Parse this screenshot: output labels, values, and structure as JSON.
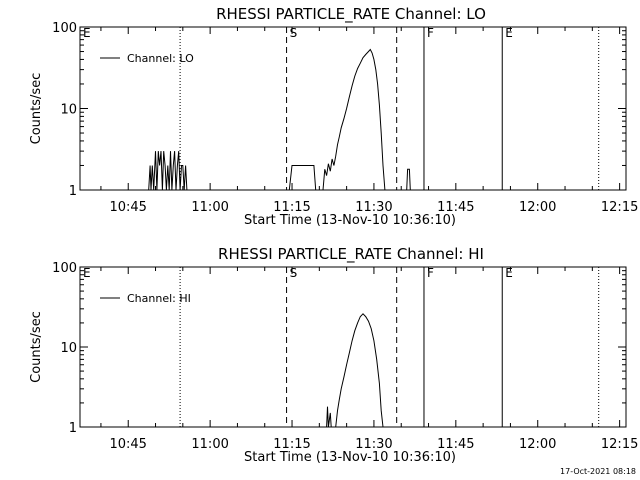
{
  "chart_data": [
    {
      "type": "line",
      "title": "RHESSI PARTICLE_RATE Channel: LO",
      "xlabel": "Start Time (13-Nov-10 10:36:10)",
      "ylabel": "Counts/sec",
      "yscale": "log",
      "ylim": [
        1,
        100
      ],
      "xlim": [
        "10:36:10",
        "12:16:10"
      ],
      "x_ticks": [
        "10:45",
        "11:00",
        "11:15",
        "11:30",
        "11:45",
        "12:00",
        "12:15"
      ],
      "y_ticks": [
        "1",
        "10",
        "100"
      ],
      "legend": {
        "label": "Channel: LO",
        "position": "top-left"
      },
      "markers": [
        {
          "label": "E",
          "time": "10:36:10",
          "style": "none"
        },
        {
          "label": "",
          "time": "10:54:30",
          "style": "dotted"
        },
        {
          "label": "S",
          "time": "11:14:00",
          "style": "dashed"
        },
        {
          "label": "",
          "time": "11:34:10",
          "style": "dashed"
        },
        {
          "label": "F",
          "time": "11:39:10",
          "style": "solid"
        },
        {
          "label": "E",
          "time": "11:53:30",
          "style": "solid"
        },
        {
          "label": "",
          "time": "12:11:10",
          "style": "dotted"
        }
      ],
      "series": [
        {
          "name": "Channel: LO",
          "segments": [
            [
              [
                "10:48:45",
                1
              ],
              [
                "10:49:00",
                2
              ],
              [
                "10:49:10",
                1
              ],
              [
                "10:49:25",
                2
              ],
              [
                "10:49:40",
                1
              ],
              [
                "10:50:00",
                3
              ],
              [
                "10:50:15",
                1
              ],
              [
                "10:50:30",
                3
              ],
              [
                "10:50:45",
                2
              ],
              [
                "10:51:00",
                3
              ],
              [
                "10:51:15",
                1
              ],
              [
                "10:51:30",
                3
              ],
              [
                "10:51:45",
                2
              ],
              [
                "10:52:00",
                1
              ],
              [
                "10:52:15",
                2
              ],
              [
                "10:52:30",
                1
              ],
              [
                "10:52:45",
                3
              ],
              [
                "10:53:00",
                1
              ],
              [
                "10:53:15",
                2
              ],
              [
                "10:53:30",
                3
              ],
              [
                "10:53:45",
                1
              ],
              [
                "10:54:00",
                2
              ],
              [
                "10:54:15",
                3
              ],
              [
                "10:54:30",
                1
              ],
              [
                "10:54:45",
                2
              ],
              [
                "10:55:00",
                2
              ],
              [
                "10:55:15",
                1
              ],
              [
                "10:55:30",
                2
              ],
              [
                "10:55:45",
                1
              ]
            ],
            [
              [
                "11:14:30",
                1
              ],
              [
                "11:15:00",
                2
              ],
              [
                "11:19:00",
                2
              ],
              [
                "11:19:20",
                1
              ]
            ],
            [
              [
                "11:20:40",
                1
              ],
              [
                "11:21:00",
                1.8
              ],
              [
                "11:21:20",
                1.5
              ],
              [
                "11:21:40",
                2.1
              ],
              [
                "11:22:00",
                1.7
              ],
              [
                "11:22:20",
                2.4
              ],
              [
                "11:22:40",
                2.0
              ],
              [
                "11:23:00",
                2.6
              ],
              [
                "11:23:20",
                3.6
              ],
              [
                "11:23:40",
                4.5
              ],
              [
                "11:24:00",
                5.8
              ],
              [
                "11:24:30",
                7.5
              ],
              [
                "11:25:00",
                10
              ],
              [
                "11:25:30",
                14
              ],
              [
                "11:26:00",
                19
              ],
              [
                "11:26:30",
                25
              ],
              [
                "11:27:00",
                31
              ],
              [
                "11:27:30",
                36
              ],
              [
                "11:28:00",
                42
              ],
              [
                "11:28:30",
                46
              ],
              [
                "11:29:00",
                50
              ],
              [
                "11:29:20",
                53
              ],
              [
                "11:29:40",
                48
              ],
              [
                "11:30:00",
                40
              ],
              [
                "11:30:20",
                30
              ],
              [
                "11:30:40",
                20
              ],
              [
                "11:31:00",
                11
              ],
              [
                "11:31:20",
                5
              ],
              [
                "11:31:40",
                2
              ],
              [
                "11:32:00",
                1
              ]
            ],
            [
              [
                "11:36:00",
                1
              ],
              [
                "11:36:10",
                1.8
              ],
              [
                "11:36:30",
                1.8
              ],
              [
                "11:36:40",
                1
              ]
            ]
          ]
        }
      ]
    },
    {
      "type": "line",
      "title": "RHESSI PARTICLE_RATE Channel: HI",
      "xlabel": "Start Time (13-Nov-10 10:36:10)",
      "ylabel": "Counts/sec",
      "yscale": "log",
      "ylim": [
        1,
        100
      ],
      "xlim": [
        "10:36:10",
        "12:16:10"
      ],
      "x_ticks": [
        "10:45",
        "11:00",
        "11:15",
        "11:30",
        "11:45",
        "12:00",
        "12:15"
      ],
      "y_ticks": [
        "1",
        "10",
        "100"
      ],
      "legend": {
        "label": "Channel: HI",
        "position": "top-left"
      },
      "markers": [
        {
          "label": "E",
          "time": "10:36:10",
          "style": "none"
        },
        {
          "label": "",
          "time": "10:54:30",
          "style": "dotted"
        },
        {
          "label": "S",
          "time": "11:14:00",
          "style": "dashed"
        },
        {
          "label": "",
          "time": "11:34:10",
          "style": "dashed"
        },
        {
          "label": "F",
          "time": "11:39:10",
          "style": "solid"
        },
        {
          "label": "E",
          "time": "11:53:30",
          "style": "solid"
        },
        {
          "label": "",
          "time": "12:11:10",
          "style": "dotted"
        }
      ],
      "series": [
        {
          "name": "Channel: HI",
          "segments": [
            [
              [
                "11:21:20",
                1
              ],
              [
                "11:21:30",
                1.8
              ],
              [
                "11:21:40",
                1
              ],
              [
                "11:22:00",
                1.5
              ],
              [
                "11:22:10",
                1
              ],
              [
                "11:23:00",
                1
              ],
              [
                "11:23:20",
                1.6
              ],
              [
                "11:23:40",
                2.2
              ],
              [
                "11:24:00",
                3
              ],
              [
                "11:24:30",
                4.2
              ],
              [
                "11:25:00",
                6
              ],
              [
                "11:25:30",
                8.5
              ],
              [
                "11:26:00",
                12
              ],
              [
                "11:26:30",
                16
              ],
              [
                "11:27:00",
                20
              ],
              [
                "11:27:30",
                24
              ],
              [
                "11:28:00",
                26
              ],
              [
                "11:28:30",
                24
              ],
              [
                "11:29:00",
                21
              ],
              [
                "11:29:30",
                17
              ],
              [
                "11:30:00",
                12
              ],
              [
                "11:30:30",
                7
              ],
              [
                "11:31:00",
                3.5
              ],
              [
                "11:31:20",
                1.6
              ],
              [
                "11:31:40",
                1
              ]
            ]
          ]
        }
      ]
    }
  ],
  "footer": {
    "timestamp": "17-Oct-2021 08:18"
  }
}
